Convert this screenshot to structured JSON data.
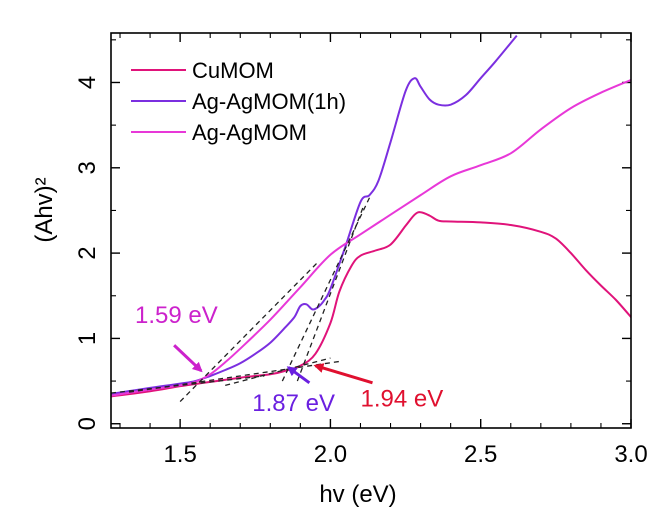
{
  "chart_data": {
    "type": "line",
    "xlabel": "hv (eV)",
    "ylabel": "(Ahv)²",
    "xlim": [
      1.27,
      3.0
    ],
    "ylim": [
      -0.05,
      4.58
    ],
    "x_ticks": [
      1.5,
      2.0,
      2.5,
      3.0
    ],
    "x_tick_labels": [
      "1.5",
      "2.0",
      "2.5",
      "3.0"
    ],
    "y_ticks": [
      0,
      1,
      2,
      3,
      4
    ],
    "y_tick_labels": [
      "0",
      "1",
      "2",
      "3",
      "4"
    ],
    "grid": false,
    "legend_position": "top-left",
    "series": [
      {
        "name": "CuMOM",
        "color": "#e0137a",
        "points": [
          [
            1.27,
            0.32
          ],
          [
            1.4,
            0.38
          ],
          [
            1.5,
            0.44
          ],
          [
            1.6,
            0.49
          ],
          [
            1.7,
            0.54
          ],
          [
            1.8,
            0.58
          ],
          [
            1.85,
            0.62
          ],
          [
            1.9,
            0.68
          ],
          [
            1.95,
            0.82
          ],
          [
            2.0,
            1.18
          ],
          [
            2.03,
            1.55
          ],
          [
            2.07,
            1.85
          ],
          [
            2.1,
            1.97
          ],
          [
            2.15,
            2.03
          ],
          [
            2.2,
            2.1
          ],
          [
            2.25,
            2.32
          ],
          [
            2.28,
            2.45
          ],
          [
            2.3,
            2.48
          ],
          [
            2.33,
            2.44
          ],
          [
            2.36,
            2.38
          ],
          [
            2.4,
            2.37
          ],
          [
            2.5,
            2.36
          ],
          [
            2.6,
            2.33
          ],
          [
            2.7,
            2.25
          ],
          [
            2.75,
            2.17
          ],
          [
            2.8,
            2.0
          ],
          [
            2.85,
            1.8
          ],
          [
            2.9,
            1.62
          ],
          [
            2.95,
            1.45
          ],
          [
            3.0,
            1.25
          ]
        ]
      },
      {
        "name": "Ag-AgMOM(1h)",
        "color": "#7b2fe0",
        "points": [
          [
            1.27,
            0.35
          ],
          [
            1.4,
            0.42
          ],
          [
            1.5,
            0.47
          ],
          [
            1.55,
            0.5
          ],
          [
            1.6,
            0.56
          ],
          [
            1.65,
            0.63
          ],
          [
            1.7,
            0.71
          ],
          [
            1.75,
            0.82
          ],
          [
            1.8,
            0.95
          ],
          [
            1.85,
            1.13
          ],
          [
            1.88,
            1.25
          ],
          [
            1.9,
            1.38
          ],
          [
            1.92,
            1.4
          ],
          [
            1.94,
            1.34
          ],
          [
            1.96,
            1.37
          ],
          [
            1.98,
            1.45
          ],
          [
            2.0,
            1.58
          ],
          [
            2.05,
            2.08
          ],
          [
            2.1,
            2.6
          ],
          [
            2.13,
            2.68
          ],
          [
            2.16,
            2.85
          ],
          [
            2.2,
            3.3
          ],
          [
            2.25,
            3.9
          ],
          [
            2.28,
            4.05
          ],
          [
            2.3,
            3.95
          ],
          [
            2.33,
            3.8
          ],
          [
            2.36,
            3.74
          ],
          [
            2.4,
            3.74
          ],
          [
            2.45,
            3.85
          ],
          [
            2.5,
            4.05
          ],
          [
            2.55,
            4.25
          ],
          [
            2.62,
            4.55
          ]
        ]
      },
      {
        "name": "Ag-AgMOM",
        "color": "#e838d8",
        "points": [
          [
            1.27,
            0.33
          ],
          [
            1.4,
            0.4
          ],
          [
            1.5,
            0.45
          ],
          [
            1.55,
            0.49
          ],
          [
            1.6,
            0.58
          ],
          [
            1.65,
            0.72
          ],
          [
            1.7,
            0.88
          ],
          [
            1.8,
            1.22
          ],
          [
            1.9,
            1.6
          ],
          [
            2.0,
            1.98
          ],
          [
            2.1,
            2.22
          ],
          [
            2.2,
            2.45
          ],
          [
            2.3,
            2.68
          ],
          [
            2.4,
            2.9
          ],
          [
            2.5,
            3.03
          ],
          [
            2.6,
            3.17
          ],
          [
            2.7,
            3.45
          ],
          [
            2.8,
            3.7
          ],
          [
            2.9,
            3.88
          ],
          [
            3.0,
            4.03
          ]
        ]
      }
    ],
    "tangent_lines": [
      {
        "color": "#222222",
        "points": [
          [
            1.27,
            0.36
          ],
          [
            1.78,
            0.56
          ]
        ]
      },
      {
        "color": "#222222",
        "points": [
          [
            1.5,
            0.26
          ],
          [
            1.96,
            1.9
          ]
        ]
      },
      {
        "color": "#222222",
        "points": [
          [
            1.33,
            0.37
          ],
          [
            2.03,
            0.73
          ]
        ]
      },
      {
        "color": "#222222",
        "points": [
          [
            1.84,
            0.5
          ],
          [
            2.13,
            2.65
          ]
        ]
      },
      {
        "color": "#222222",
        "points": [
          [
            1.65,
            0.45
          ],
          [
            2.0,
            0.77
          ]
        ]
      },
      {
        "color": "#222222",
        "points": [
          [
            1.89,
            0.5
          ],
          [
            2.11,
            2.55
          ]
        ]
      }
    ],
    "annotations": [
      {
        "text": "1.59 eV",
        "color": "#cc22cc",
        "x": 1.35,
        "y": 1.18,
        "arrow_from": [
          1.48,
          0.92
        ],
        "arrow_to": [
          1.57,
          0.62
        ]
      },
      {
        "text": "1.87 eV",
        "color": "#6a1fe0",
        "x": 1.74,
        "y": 0.15,
        "arrow_from": [
          1.93,
          0.48
        ],
        "arrow_to": [
          1.86,
          0.66
        ]
      },
      {
        "text": "1.94 eV",
        "color": "#e0102f",
        "x": 2.1,
        "y": 0.2,
        "arrow_from": [
          2.14,
          0.48
        ],
        "arrow_to": [
          1.95,
          0.68
        ]
      }
    ]
  }
}
